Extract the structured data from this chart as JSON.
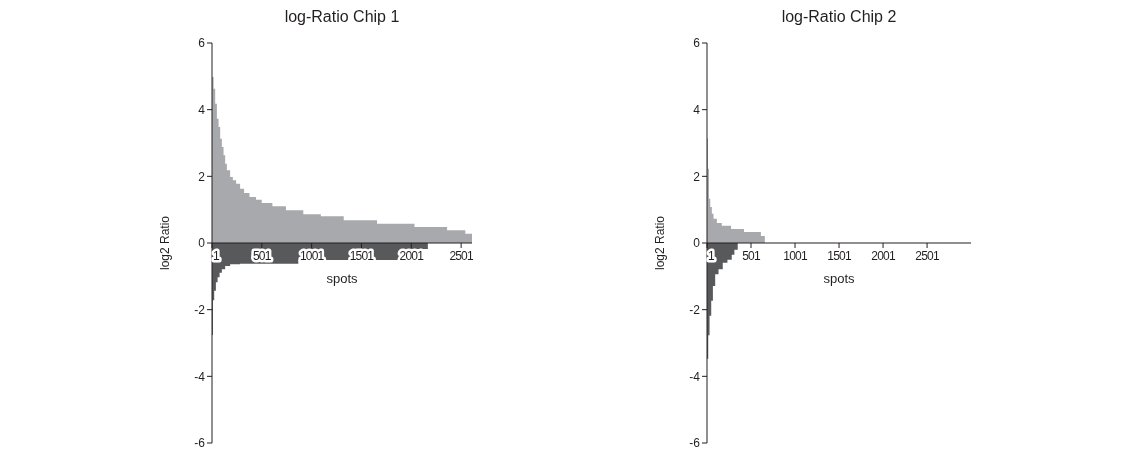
{
  "chart_data": [
    {
      "type": "area",
      "title": "log-Ratio Chip 1",
      "xlabel": "spots",
      "ylabel": "log2 Ratio",
      "xlim": [
        1,
        2610
      ],
      "xticks": [
        1,
        501,
        1001,
        1501,
        2001,
        2501
      ],
      "ylim": [
        -6,
        6
      ],
      "yticks": [
        -6,
        -4,
        -2,
        0,
        2,
        4,
        6
      ],
      "series": [
        {
          "color": "#a7a9ac",
          "x": [
            1,
            17,
            33,
            50,
            67,
            83,
            100,
            117,
            133,
            150,
            183,
            210,
            243,
            283,
            323,
            377,
            443,
            500,
            607,
            743,
            917,
            1093,
            1323,
            1657,
            2033,
            2360,
            2543,
            2610
          ],
          "values": [
            4.98,
            4.63,
            4.18,
            3.73,
            3.48,
            3.13,
            2.88,
            2.63,
            2.38,
            2.18,
            1.98,
            1.88,
            1.78,
            1.63,
            1.5,
            1.38,
            1.3,
            1.2,
            1.1,
            0.98,
            0.86,
            0.8,
            0.68,
            0.58,
            0.48,
            0.38,
            0.28,
            0.28
          ]
        },
        {
          "color": "#58595b",
          "x": [
            1,
            10,
            23,
            40,
            57,
            77,
            100,
            133,
            183,
            283,
            867,
            2000,
            2167
          ],
          "values": [
            -2.76,
            -1.72,
            -1.43,
            -1.18,
            -1.03,
            -0.89,
            -0.79,
            -0.69,
            -0.64,
            -0.62,
            -0.51,
            -0.18,
            -0.18
          ]
        }
      ]
    },
    {
      "type": "area",
      "title": "log-Ratio Chip 2",
      "xlabel": "spots",
      "ylabel": "log2 Ratio",
      "xlim": [
        1,
        3000
      ],
      "xticks": [
        1,
        501,
        1001,
        1501,
        2001,
        2501
      ],
      "ylim": [
        -6,
        6
      ],
      "yticks": [
        -6,
        -4,
        -2,
        0,
        2,
        4,
        6
      ],
      "series": [
        {
          "color": "#a7a9ac",
          "x": [
            1,
            12,
            23,
            38,
            56,
            75,
            113,
            169,
            274,
            421,
            613,
            658
          ],
          "values": [
            3.13,
            2.23,
            1.33,
            1.08,
            0.88,
            0.73,
            0.6,
            0.52,
            0.42,
            0.33,
            0.21,
            0.21
          ]
        },
        {
          "color": "#58595b",
          "x": [
            1,
            15,
            30,
            49,
            68,
            94,
            132,
            180,
            233,
            282,
            312,
            350
          ],
          "values": [
            -3.47,
            -2.77,
            -2.18,
            -1.73,
            -1.29,
            -0.94,
            -0.79,
            -0.59,
            -0.5,
            -0.35,
            -0.2,
            -0.2
          ]
        }
      ]
    }
  ]
}
